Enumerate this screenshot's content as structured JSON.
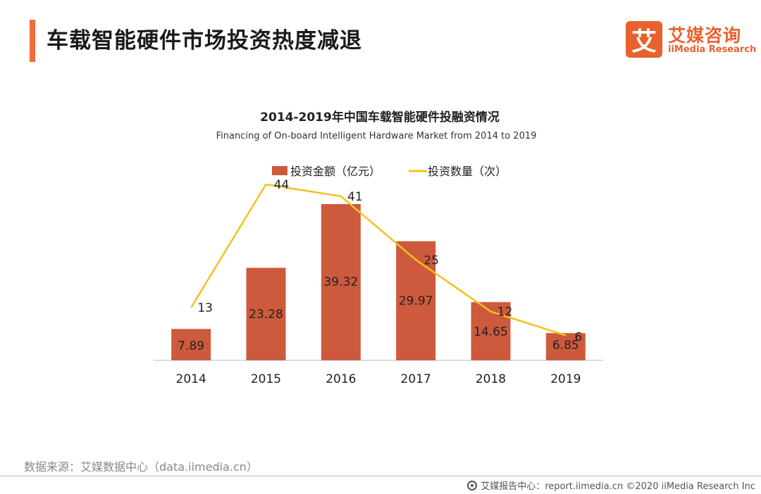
{
  "header": {
    "title": "车载智能硬件市场投资热度减退",
    "logo_mark": "艾",
    "logo_cn": "艾媒咨询",
    "logo_en": "iiMedia Research"
  },
  "chart_data": {
    "type": "bar",
    "title": "2014-2019年中国车载智能硬件投融资情况",
    "subtitle": "Financing of On-board Intelligent Hardware Market from 2014 to 2019",
    "categories": [
      "2014",
      "2015",
      "2016",
      "2017",
      "2018",
      "2019"
    ],
    "series": [
      {
        "name": "投资金额（亿元）",
        "type": "bar",
        "color": "#cd5a3c",
        "values": [
          7.89,
          23.28,
          39.32,
          29.97,
          14.65,
          6.85
        ]
      },
      {
        "name": "投资数量（次）",
        "type": "line",
        "color": "#f2c21b",
        "values": [
          13,
          44,
          41,
          25,
          12,
          6
        ]
      }
    ],
    "bar_ylim": [
      0,
      42
    ],
    "line_ylim": [
      0,
      50
    ],
    "legend_position": "top-center",
    "grid": false
  },
  "footer": {
    "source": "数据来源：艾媒数据中心（data.iimedia.cn）",
    "copyright": "艾媒报告中心：report.iimedia.cn ©2020 iiMedia Research Inc"
  }
}
